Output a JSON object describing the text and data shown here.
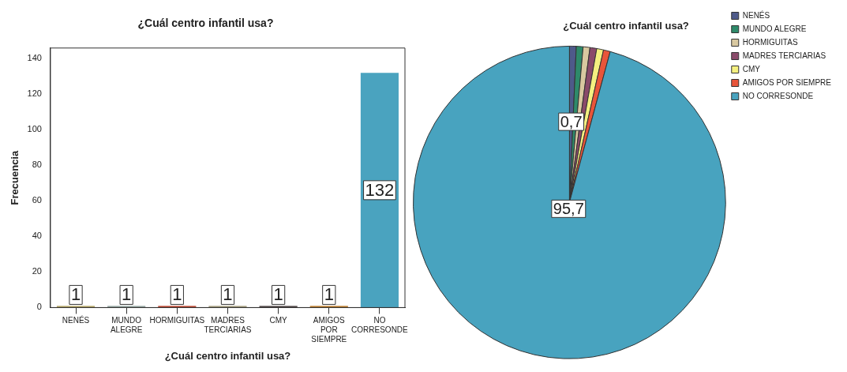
{
  "chart_data": [
    {
      "type": "bar",
      "title": "¿Cuál centro infantil usa?",
      "xlabel": "¿Cuál centro infantil usa?",
      "ylabel": "Frecuencia",
      "categories": [
        "NENÉS",
        "MUNDO ALEGRE",
        "HORMIGUITAS",
        "MADRES TERCIARIAS",
        "CMY",
        "AMIGOS POR SIEMPRE",
        "NO CORRESONDE"
      ],
      "values": [
        1,
        1,
        1,
        1,
        1,
        1,
        132
      ],
      "colors": [
        "#b8ab6e",
        "#9aaaa6",
        "#c0503c",
        "#a8a285",
        "#5a5050",
        "#c08438",
        "#4aa3bf"
      ],
      "ylim": [
        0,
        146
      ],
      "yticks": [
        0,
        20,
        40,
        60,
        80,
        100,
        120,
        140
      ],
      "data_labels": true
    },
    {
      "type": "pie",
      "title": "¿Cuál centro infantil usa?",
      "categories": [
        "NENÉS",
        "MUNDO ALEGRE",
        "HORMIGUITAS",
        "MADRES TERCIARIAS",
        "CMY",
        "AMIGOS POR SIEMPRE",
        "NO CORRESONDE"
      ],
      "values": [
        0.7,
        0.7,
        0.7,
        0.7,
        0.7,
        0.7,
        95.7
      ],
      "colors": [
        "#4e5a8a",
        "#2e8a6a",
        "#d8c8a0",
        "#8a4a6a",
        "#f4f080",
        "#e8553a",
        "#48a3bf"
      ],
      "value_labels": [
        "0,7",
        null,
        null,
        null,
        null,
        null,
        "95,7"
      ],
      "legend": "right"
    }
  ]
}
